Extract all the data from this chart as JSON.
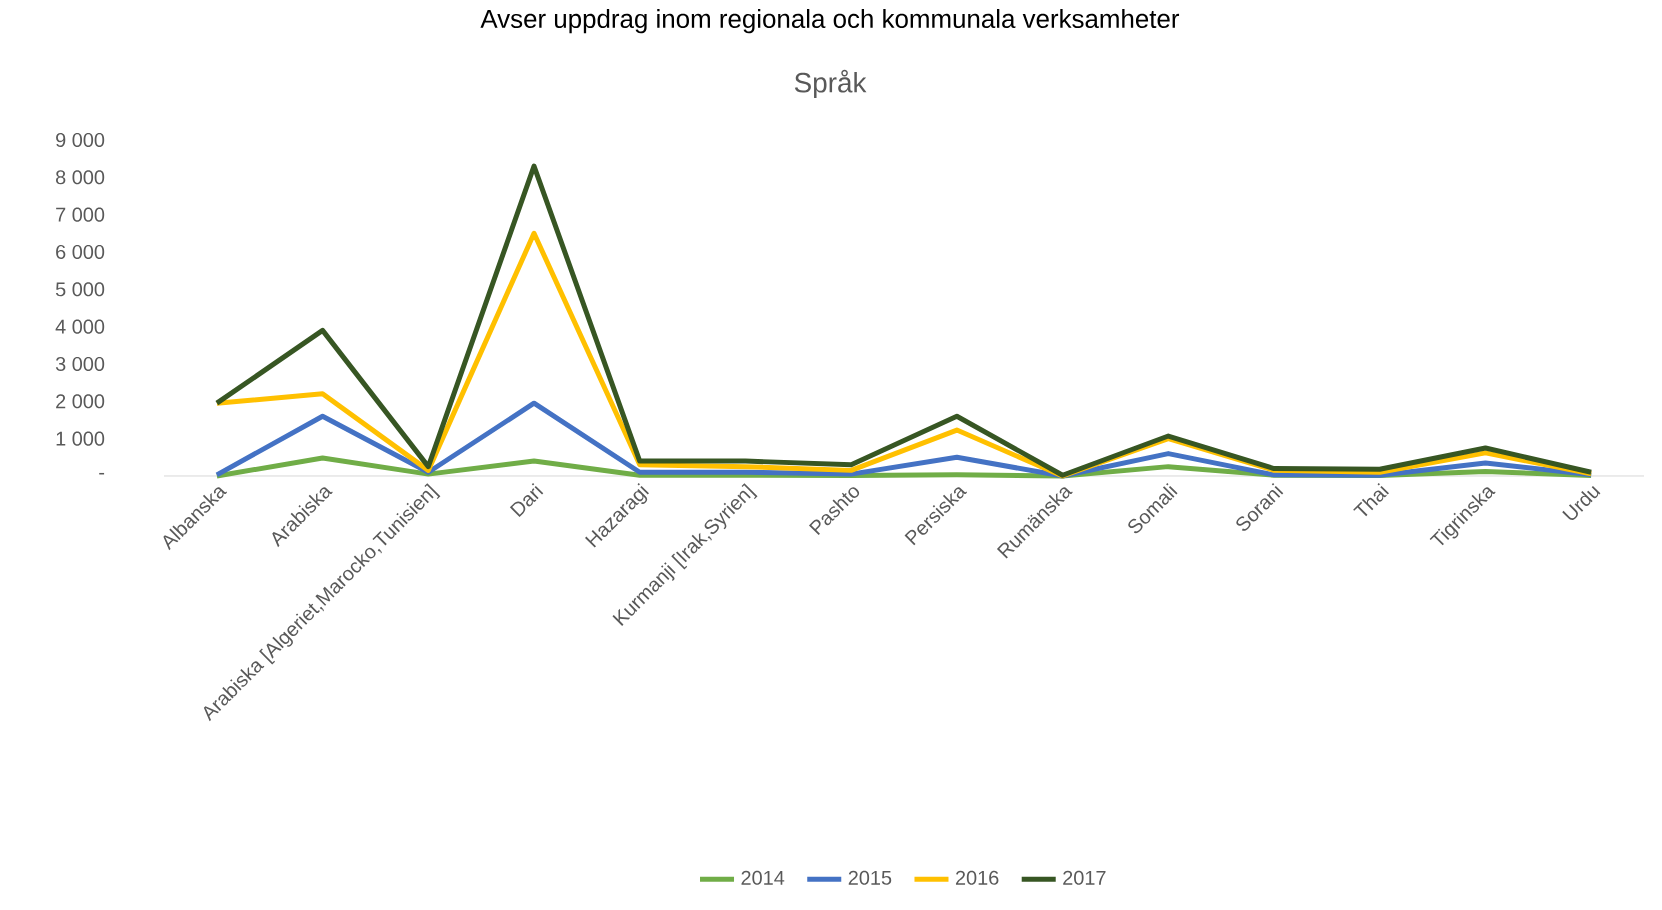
{
  "chart_data": {
    "type": "line",
    "title": "Språk",
    "subtitle": "Avser uppdrag inom regionala och kommunala verksamheter",
    "categories": [
      "Albanska",
      "Arabiska",
      "Arabiska [Algeriet,Marocko,Tunisien]",
      "Dari",
      "Hazaragi",
      "Kurmanji [Irak,Syrien]",
      "Pashto",
      "Persiska",
      "Rumänska",
      "Somali",
      "Sorani",
      "Thai",
      "Tigrinska",
      "Urdu"
    ],
    "series": [
      {
        "name": "2014",
        "color": "#70ad47",
        "values": [
          0,
          480,
          50,
          400,
          20,
          20,
          10,
          30,
          0,
          250,
          20,
          10,
          120,
          10
        ]
      },
      {
        "name": "2015",
        "color": "#4472c4",
        "values": [
          30,
          1600,
          100,
          1950,
          100,
          100,
          50,
          500,
          0,
          600,
          30,
          20,
          350,
          30
        ]
      },
      {
        "name": "2016",
        "color": "#ffc000",
        "values": [
          1950,
          2200,
          150,
          6500,
          300,
          250,
          150,
          1230,
          0,
          1000,
          150,
          100,
          620,
          60
        ]
      },
      {
        "name": "2017",
        "color": "#375623",
        "values": [
          1950,
          3900,
          250,
          8300,
          400,
          400,
          300,
          1600,
          20,
          1070,
          200,
          180,
          750,
          100
        ]
      }
    ],
    "ylim": [
      0,
      9000
    ],
    "yticks": [
      {
        "value": 0,
        "label": "-"
      },
      {
        "value": 1000,
        "label": "1 000"
      },
      {
        "value": 2000,
        "label": "2 000"
      },
      {
        "value": 3000,
        "label": "3 000"
      },
      {
        "value": 4000,
        "label": "4 000"
      },
      {
        "value": 5000,
        "label": "5 000"
      },
      {
        "value": 6000,
        "label": "6 000"
      },
      {
        "value": 7000,
        "label": "7 000"
      },
      {
        "value": 8000,
        "label": "8 000"
      },
      {
        "value": 9000,
        "label": "9 000"
      }
    ],
    "legend": "bottom"
  }
}
